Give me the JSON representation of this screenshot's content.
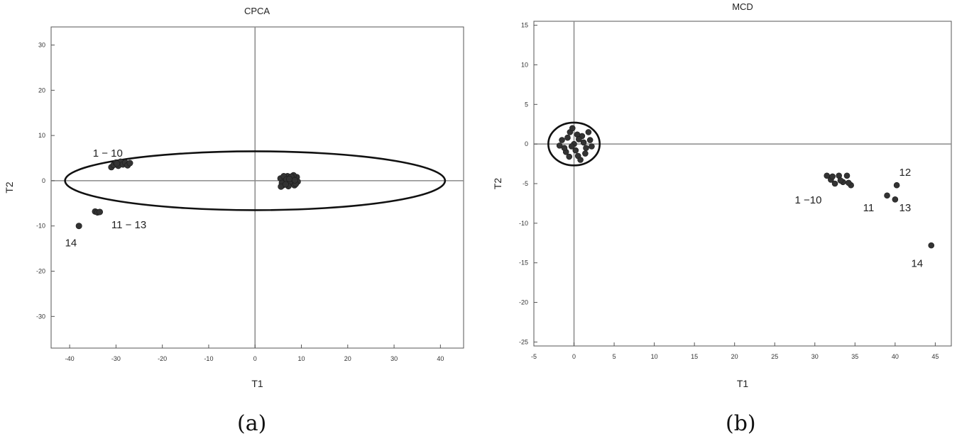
{
  "chart_data": [
    {
      "type": "scatter",
      "title": "CPCA",
      "xlabel": "T1",
      "ylabel": "T2",
      "caption": "(a)",
      "xlim": [
        -44,
        45
      ],
      "ylim": [
        -37,
        34
      ],
      "xticks": [
        -40,
        -30,
        -20,
        -10,
        0,
        10,
        20,
        30,
        40
      ],
      "yticks": [
        30,
        20,
        10,
        0,
        -10,
        -20,
        -30
      ],
      "grid": false,
      "reference_lines": {
        "x": 0,
        "y": 0
      },
      "ellipse": {
        "cx": 0,
        "cy": 0,
        "rx": 41,
        "ry": 6.5
      },
      "points": [
        {
          "x": -31,
          "y": 3
        },
        {
          "x": -30.5,
          "y": 3.5
        },
        {
          "x": -30,
          "y": 4
        },
        {
          "x": -29.5,
          "y": 3.3
        },
        {
          "x": -29,
          "y": 4.2
        },
        {
          "x": -28.5,
          "y": 3.6
        },
        {
          "x": -28,
          "y": 4
        },
        {
          "x": -27.5,
          "y": 3.4
        },
        {
          "x": -27,
          "y": 3.9
        },
        {
          "x": -29.8,
          "y": 3.8
        },
        {
          "x": -34.5,
          "y": -6.8
        },
        {
          "x": -34,
          "y": -7
        },
        {
          "x": -33.5,
          "y": -6.9
        },
        {
          "x": -38,
          "y": -10
        },
        {
          "x": 5.5,
          "y": 0.5
        },
        {
          "x": 6,
          "y": -1
        },
        {
          "x": 6.5,
          "y": 0
        },
        {
          "x": 7,
          "y": 1
        },
        {
          "x": 7.5,
          "y": -0.5
        },
        {
          "x": 8,
          "y": 0.5
        },
        {
          "x": 8.5,
          "y": -1
        },
        {
          "x": 9,
          "y": 0.8
        },
        {
          "x": 6.2,
          "y": 1
        },
        {
          "x": 7.2,
          "y": -1.2
        },
        {
          "x": 8.3,
          "y": 1.2
        },
        {
          "x": 5.8,
          "y": -0.5
        },
        {
          "x": 9.2,
          "y": -0.2
        },
        {
          "x": 6.8,
          "y": 0.3
        },
        {
          "x": 7.8,
          "y": 0.9
        },
        {
          "x": 8.8,
          "y": -0.7
        },
        {
          "x": 5.6,
          "y": -1.3
        },
        {
          "x": 6.6,
          "y": -0.8
        },
        {
          "x": 7.4,
          "y": 0.4
        },
        {
          "x": 8.6,
          "y": 0.1
        }
      ],
      "annotations": [
        {
          "text": "1 − 10",
          "x": -35,
          "y": 5.3
        },
        {
          "text": "11 − 13",
          "x": -31,
          "y": -10.5
        },
        {
          "text": "14",
          "x": -41,
          "y": -14.5
        }
      ]
    },
    {
      "type": "scatter",
      "title": "MCD",
      "xlabel": "T1",
      "ylabel": "T2",
      "caption": "(b)",
      "xlim": [
        -5,
        47
      ],
      "ylim": [
        -25.5,
        15.5
      ],
      "xticks": [
        -5,
        0,
        5,
        10,
        15,
        20,
        25,
        30,
        35,
        40,
        45
      ],
      "yticks": [
        15,
        10,
        5,
        0,
        -5,
        -10,
        -15,
        -20,
        -25
      ],
      "grid": false,
      "reference_lines": {
        "x": 0,
        "y": 0
      },
      "ellipse": {
        "cx": 0,
        "cy": 0,
        "rx": 3.2,
        "ry": 2.7
      },
      "points": [
        {
          "x": -1.5,
          "y": 0.5
        },
        {
          "x": -1,
          "y": -1
        },
        {
          "x": -0.5,
          "y": 1.5
        },
        {
          "x": 0,
          "y": 0
        },
        {
          "x": 0.5,
          "y": -1.5
        },
        {
          "x": 1,
          "y": 1
        },
        {
          "x": 1.5,
          "y": -0.5
        },
        {
          "x": 2,
          "y": 0.5
        },
        {
          "x": -1.2,
          "y": -0.5
        },
        {
          "x": -0.2,
          "y": 2
        },
        {
          "x": 0.8,
          "y": -2
        },
        {
          "x": 1.8,
          "y": 1.5
        },
        {
          "x": -0.8,
          "y": 0.8
        },
        {
          "x": 0.2,
          "y": -0.8
        },
        {
          "x": 1.2,
          "y": 0.2
        },
        {
          "x": -1.8,
          "y": -0.2
        },
        {
          "x": 0.4,
          "y": 1.2
        },
        {
          "x": 1.4,
          "y": -1.2
        },
        {
          "x": -0.6,
          "y": -1.6
        },
        {
          "x": 2.2,
          "y": -0.3
        },
        {
          "x": 0.6,
          "y": 0.6
        },
        {
          "x": -0.3,
          "y": -0.3
        },
        {
          "x": 31.5,
          "y": -4
        },
        {
          "x": 32,
          "y": -4.5
        },
        {
          "x": 32.5,
          "y": -5
        },
        {
          "x": 33,
          "y": -4
        },
        {
          "x": 33.5,
          "y": -4.8
        },
        {
          "x": 34,
          "y": -4
        },
        {
          "x": 34.5,
          "y": -5.2
        },
        {
          "x": 32.2,
          "y": -4.1
        },
        {
          "x": 33.2,
          "y": -4.6
        },
        {
          "x": 34.2,
          "y": -4.9
        },
        {
          "x": 39,
          "y": -6.5
        },
        {
          "x": 40.2,
          "y": -5.2
        },
        {
          "x": 40,
          "y": -7
        },
        {
          "x": 44.5,
          "y": -12.8
        }
      ],
      "annotations": [
        {
          "text": "1 −10",
          "x": 27.5,
          "y": -7.5
        },
        {
          "text": "11",
          "x": 36,
          "y": -8.5
        },
        {
          "text": "12",
          "x": 40.5,
          "y": -4
        },
        {
          "text": "13",
          "x": 40.5,
          "y": -8.5
        },
        {
          "text": "14",
          "x": 42,
          "y": -15.5
        }
      ]
    }
  ]
}
